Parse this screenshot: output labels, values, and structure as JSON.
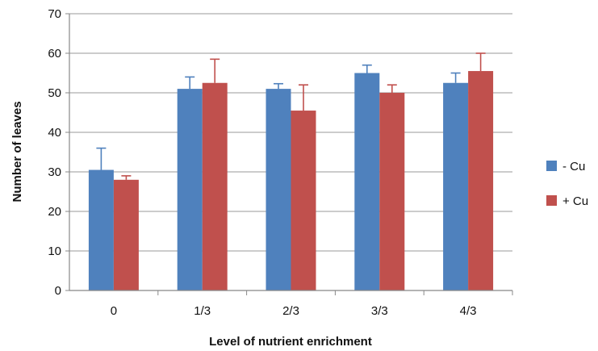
{
  "chart_data": {
    "type": "bar",
    "title": "",
    "xlabel": "Level of nutrient enrichment",
    "ylabel": "Number of leaves",
    "categories": [
      "0",
      "1/3",
      "2/3",
      "3/3",
      "4/3"
    ],
    "ylim": [
      0,
      70
    ],
    "yticks": [
      "0",
      "10",
      "20",
      "30",
      "40",
      "50",
      "60",
      "70"
    ],
    "grid": "horizontal",
    "legend_position": "right",
    "series": [
      {
        "name": "- Cu",
        "color": "#4f81bd",
        "values": [
          30.5,
          51,
          51,
          55,
          52.5
        ],
        "error_upper": [
          5.5,
          3,
          1.3,
          2,
          2.5
        ]
      },
      {
        "name": "+ Cu",
        "color": "#c0504d",
        "values": [
          28,
          52.5,
          45.5,
          50,
          55.5
        ],
        "error_upper": [
          1,
          6,
          6.5,
          2,
          4.5
        ]
      }
    ]
  }
}
